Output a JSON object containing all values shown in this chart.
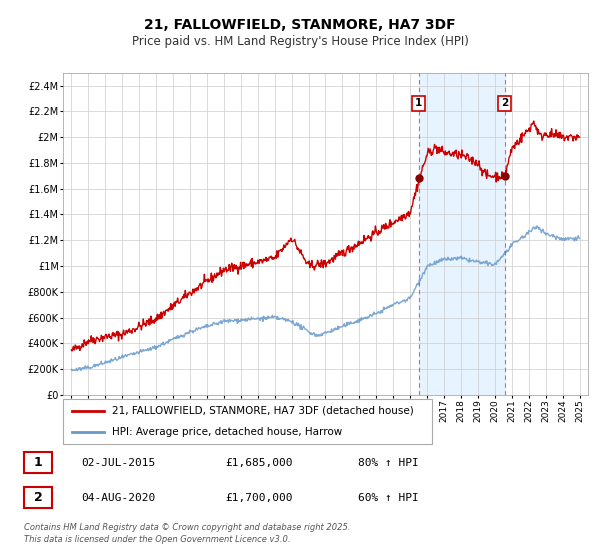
{
  "title": "21, FALLOWFIELD, STANMORE, HA7 3DF",
  "subtitle": "Price paid vs. HM Land Registry's House Price Index (HPI)",
  "title_fontsize": 10,
  "subtitle_fontsize": 8.5,
  "ylim": [
    0,
    2500000
  ],
  "xlim": [
    1994.5,
    2025.5
  ],
  "background_color": "#ffffff",
  "chart_bg": "#ffffff",
  "grid_color": "#cccccc",
  "red_line_color": "#cc0000",
  "blue_line_color": "#6699cc",
  "shaded_color": "#ddeeff",
  "sale1_year": 2015.5,
  "sale1_price": 1685000,
  "sale1_label": "1",
  "sale2_year": 2020.58,
  "sale2_price": 1700000,
  "sale2_label": "2",
  "legend_label_red": "21, FALLOWFIELD, STANMORE, HA7 3DF (detached house)",
  "legend_label_blue": "HPI: Average price, detached house, Harrow",
  "table_data": [
    {
      "num": "1",
      "date": "02-JUL-2015",
      "price": "£1,685,000",
      "hpi": "80% ↑ HPI"
    },
    {
      "num": "2",
      "date": "04-AUG-2020",
      "price": "£1,700,000",
      "hpi": "60% ↑ HPI"
    }
  ],
  "footer": "Contains HM Land Registry data © Crown copyright and database right 2025.\nThis data is licensed under the Open Government Licence v3.0.",
  "ytick_labels": [
    "£0",
    "£200K",
    "£400K",
    "£600K",
    "£800K",
    "£1M",
    "£1.2M",
    "£1.4M",
    "£1.6M",
    "£1.8M",
    "£2M",
    "£2.2M",
    "£2.4M"
  ],
  "ytick_values": [
    0,
    200000,
    400000,
    600000,
    800000,
    1000000,
    1200000,
    1400000,
    1600000,
    1800000,
    2000000,
    2200000,
    2400000
  ]
}
